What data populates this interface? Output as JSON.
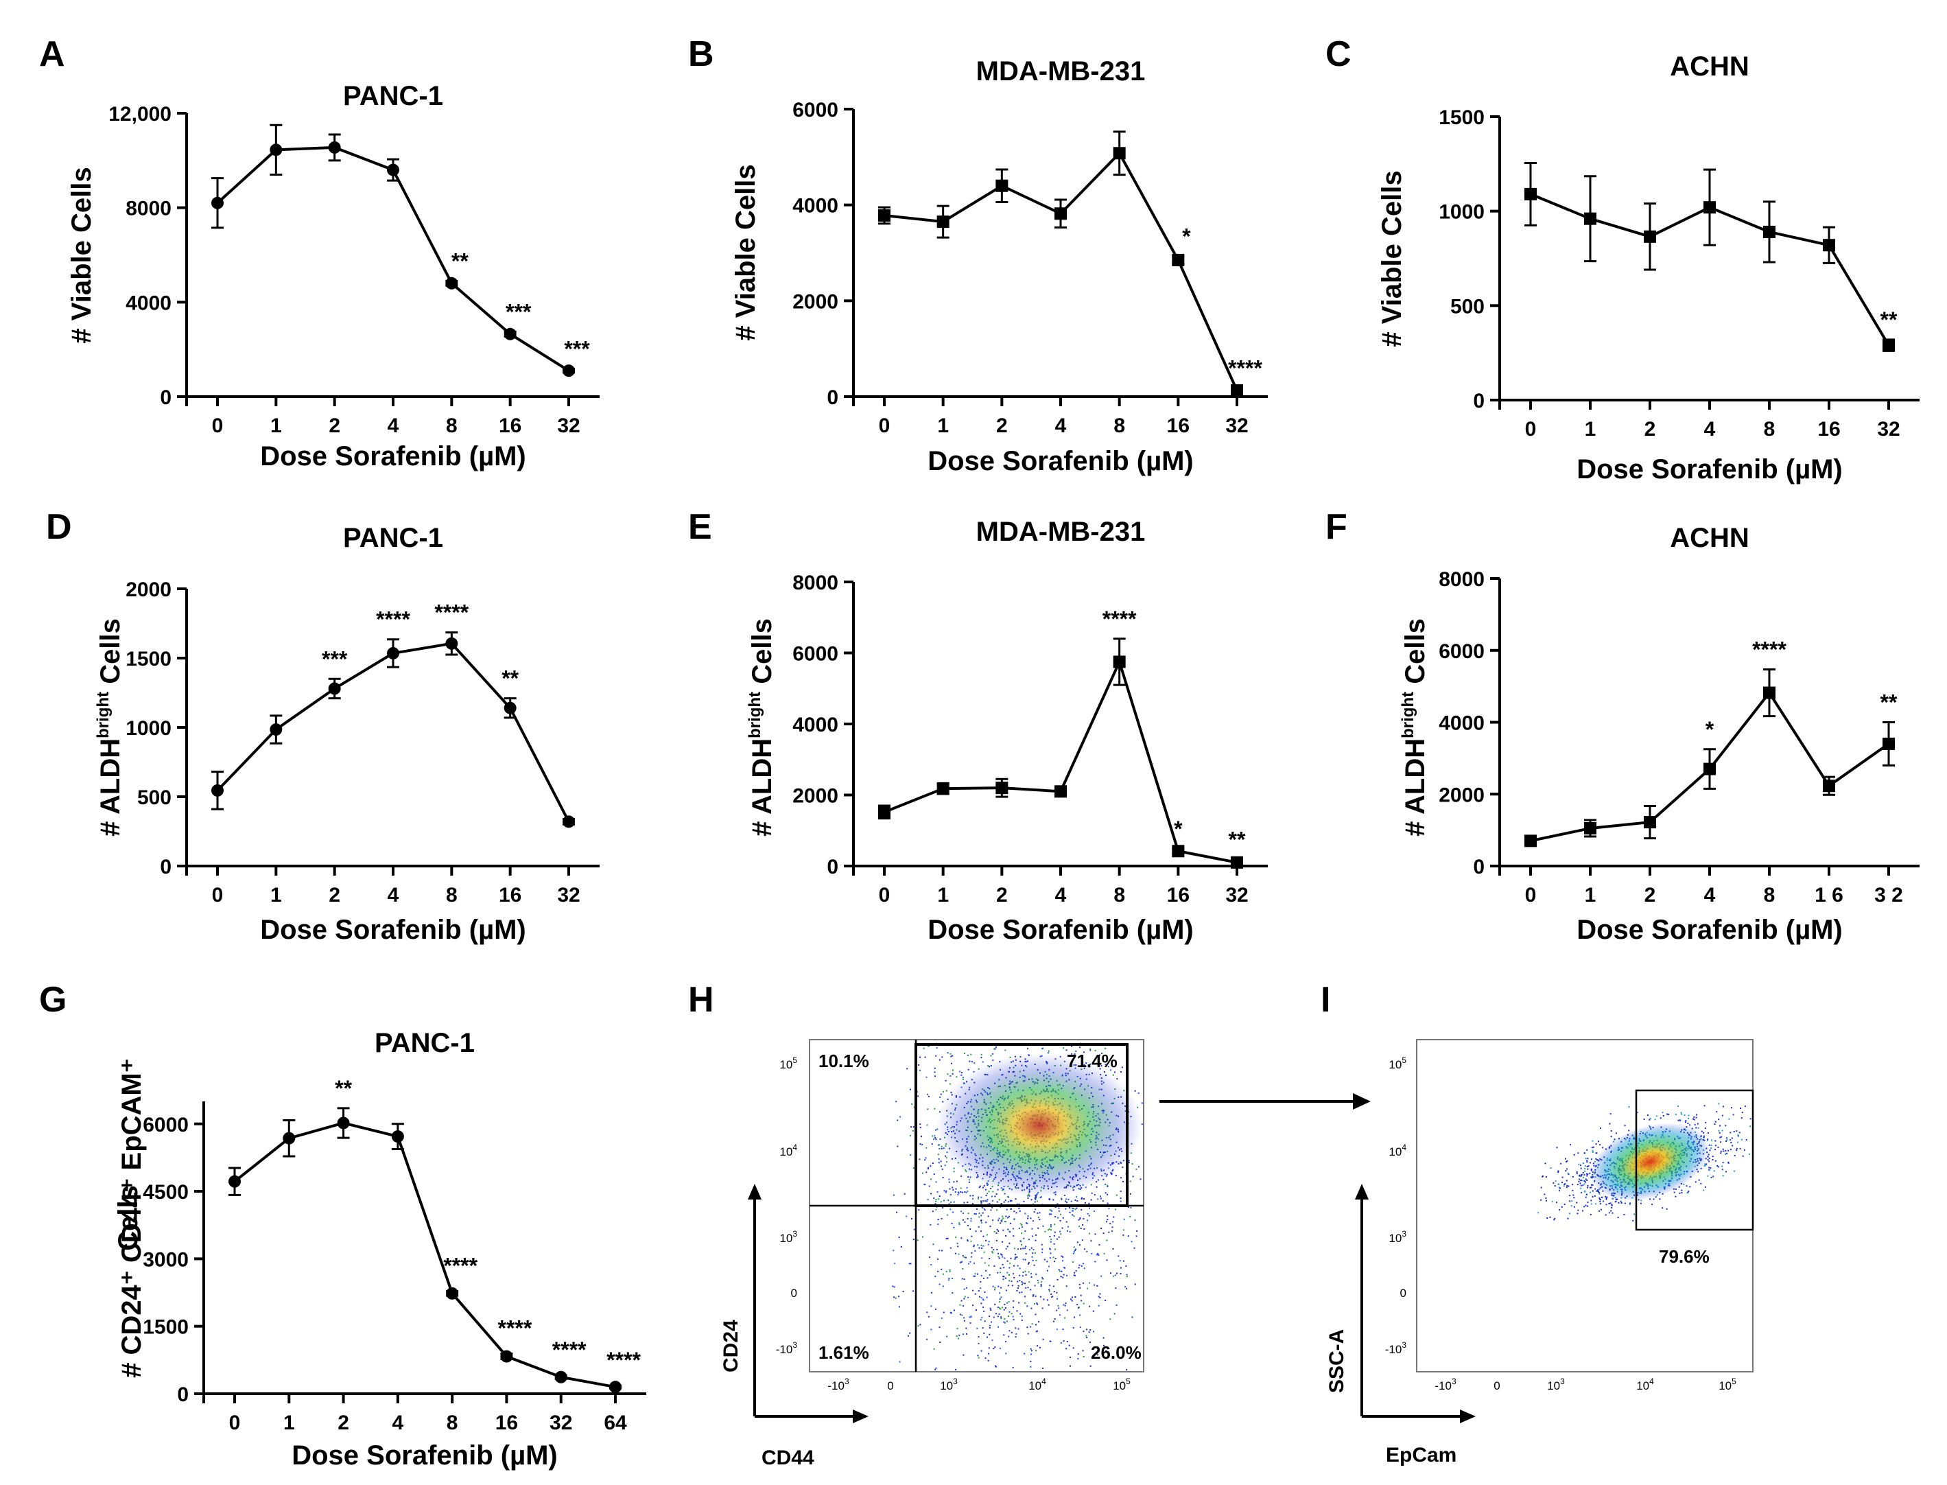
{
  "chart_data": [
    {
      "type": "line",
      "panel": "A",
      "title": "PANC-1",
      "xlabel": "Dose Sorafenib (µM)",
      "ylabel": "# Viable Cells",
      "categories": [
        "0",
        "1",
        "2",
        "4",
        "8",
        "16",
        "32"
      ],
      "values": [
        8200,
        10450,
        10550,
        9600,
        4800,
        2650,
        1100
      ],
      "errors": [
        1050,
        1050,
        550,
        450,
        100,
        100,
        80
      ],
      "significance": [
        "",
        "",
        "",
        "",
        "**",
        "***",
        "***"
      ],
      "marker": "circle",
      "yticks": [
        "0",
        "4000",
        "8000",
        "12,000"
      ],
      "ylim": [
        0,
        12000
      ]
    },
    {
      "type": "line",
      "panel": "B",
      "title": "MDA-MB-231",
      "xlabel": "Dose Sorafenib (µM)",
      "ylabel": "# Viable Cells",
      "categories": [
        "0",
        "1",
        "2",
        "4",
        "8",
        "16",
        "32"
      ],
      "values": [
        3780,
        3650,
        4400,
        3820,
        5080,
        2850,
        130
      ],
      "errors": [
        170,
        330,
        340,
        290,
        450,
        80,
        50
      ],
      "significance": [
        "",
        "",
        "",
        "",
        "",
        "*",
        "****"
      ],
      "marker": "square",
      "yticks": [
        "0",
        "2000",
        "4000",
        "6000"
      ],
      "ylim": [
        0,
        6000
      ]
    },
    {
      "type": "line",
      "panel": "C",
      "title": "ACHN",
      "xlabel": "Dose Sorafenib (µM)",
      "ylabel": "# Viable Cells",
      "categories": [
        "0",
        "1",
        "2",
        "4",
        "8",
        "16",
        "32"
      ],
      "values": [
        1090,
        960,
        865,
        1020,
        890,
        820,
        290
      ],
      "errors": [
        165,
        225,
        175,
        200,
        160,
        95,
        30
      ],
      "significance": [
        "",
        "",
        "",
        "",
        "",
        "",
        "**"
      ],
      "marker": "square",
      "yticks": [
        "0",
        "500",
        "1000",
        "1500"
      ],
      "ylim": [
        0,
        1500
      ]
    },
    {
      "type": "line",
      "panel": "D",
      "title": "PANC-1",
      "xlabel": "Dose Sorafenib (µM)",
      "ylabel_prefix": "# ALDH",
      "ylabel_sup": "bright",
      "ylabel_suffix": " Cells",
      "categories": [
        "0",
        "1",
        "2",
        "4",
        "8",
        "16",
        "32"
      ],
      "values": [
        545,
        985,
        1280,
        1535,
        1605,
        1140,
        320
      ],
      "errors": [
        135,
        100,
        70,
        100,
        80,
        70,
        20
      ],
      "significance": [
        "",
        "",
        "***",
        "****",
        "****",
        "**",
        ""
      ],
      "marker": "circle",
      "yticks": [
        "0",
        "500",
        "1000",
        "1500",
        "2000"
      ],
      "ylim": [
        0,
        2000
      ]
    },
    {
      "type": "line",
      "panel": "E",
      "title": "MDA-MB-231",
      "xlabel": "Dose Sorafenib (µM)",
      "ylabel_prefix": "# ALDH",
      "ylabel_sup": "bright",
      "ylabel_suffix": " Cells",
      "categories": [
        "0",
        "1",
        "2",
        "4",
        "8",
        "16",
        "32"
      ],
      "values": [
        1520,
        2180,
        2200,
        2100,
        5750,
        420,
        100
      ],
      "errors": [
        180,
        150,
        250,
        80,
        650,
        60,
        80
      ],
      "significance": [
        "",
        "",
        "",
        "",
        "****",
        "*",
        "**"
      ],
      "marker": "square",
      "yticks": [
        "0",
        "2000",
        "4000",
        "6000",
        "8000"
      ],
      "ylim": [
        0,
        8000
      ]
    },
    {
      "type": "line",
      "panel": "F",
      "title": "ACHN",
      "xlabel": "Dose Sorafenib (µM)",
      "ylabel_prefix": "# ALDH",
      "ylabel_sup": "bright",
      "ylabel_suffix": " Cells",
      "categories": [
        "0",
        "1",
        "2",
        "4",
        "8",
        "1 6",
        "3 2"
      ],
      "values": [
        700,
        1050,
        1220,
        2700,
        4820,
        2230,
        3400
      ],
      "errors": [
        80,
        230,
        450,
        550,
        650,
        250,
        600
      ],
      "significance": [
        "",
        "",
        "",
        "*",
        "****",
        "",
        "**"
      ],
      "marker": "square",
      "yticks": [
        "0",
        "2000",
        "4000",
        "6000",
        "8000"
      ],
      "ylim": [
        0,
        8000
      ]
    },
    {
      "type": "line",
      "panel": "G",
      "title": "PANC-1",
      "xlabel": "Dose Sorafenib (µM)",
      "ylabel_lines": [
        "# CD24⁺ CD44⁺ EpCAM⁺",
        "Cells"
      ],
      "categories": [
        "0",
        "1",
        "2",
        "4",
        "8",
        "16",
        "32",
        "64"
      ],
      "values": [
        4720,
        5680,
        6020,
        5720,
        2230,
        830,
        370,
        150
      ],
      "errors": [
        300,
        400,
        330,
        280,
        50,
        60,
        40,
        30
      ],
      "significance": [
        "",
        "",
        "**",
        "",
        "****",
        "****",
        "****",
        "****"
      ],
      "marker": "circle",
      "yticks": [
        "0",
        "1500",
        "3000",
        "4500",
        "6000"
      ],
      "ylim": [
        0,
        6500
      ]
    }
  ],
  "flow": {
    "h": {
      "panel": "H",
      "xlabel": "CD44",
      "ylabel": "CD24",
      "quadrants": {
        "upper_left": "10.1%",
        "upper_right": "71.4%",
        "lower_left": "1.61%",
        "lower_right": "26.0%"
      }
    },
    "i": {
      "panel": "I",
      "xlabel": "EpCam",
      "ylabel": "SSC-A",
      "gate_pct": "79.6%"
    },
    "x_ticks": [
      "-10",
      "0",
      "10",
      "10",
      "10"
    ],
    "x_exponents": [
      "3",
      "",
      "3",
      "4",
      "5"
    ],
    "y_ticks": [
      "10",
      "10",
      "10",
      "0",
      "-10"
    ],
    "y_exponents": [
      "5",
      "4",
      "3",
      "",
      "3"
    ]
  }
}
